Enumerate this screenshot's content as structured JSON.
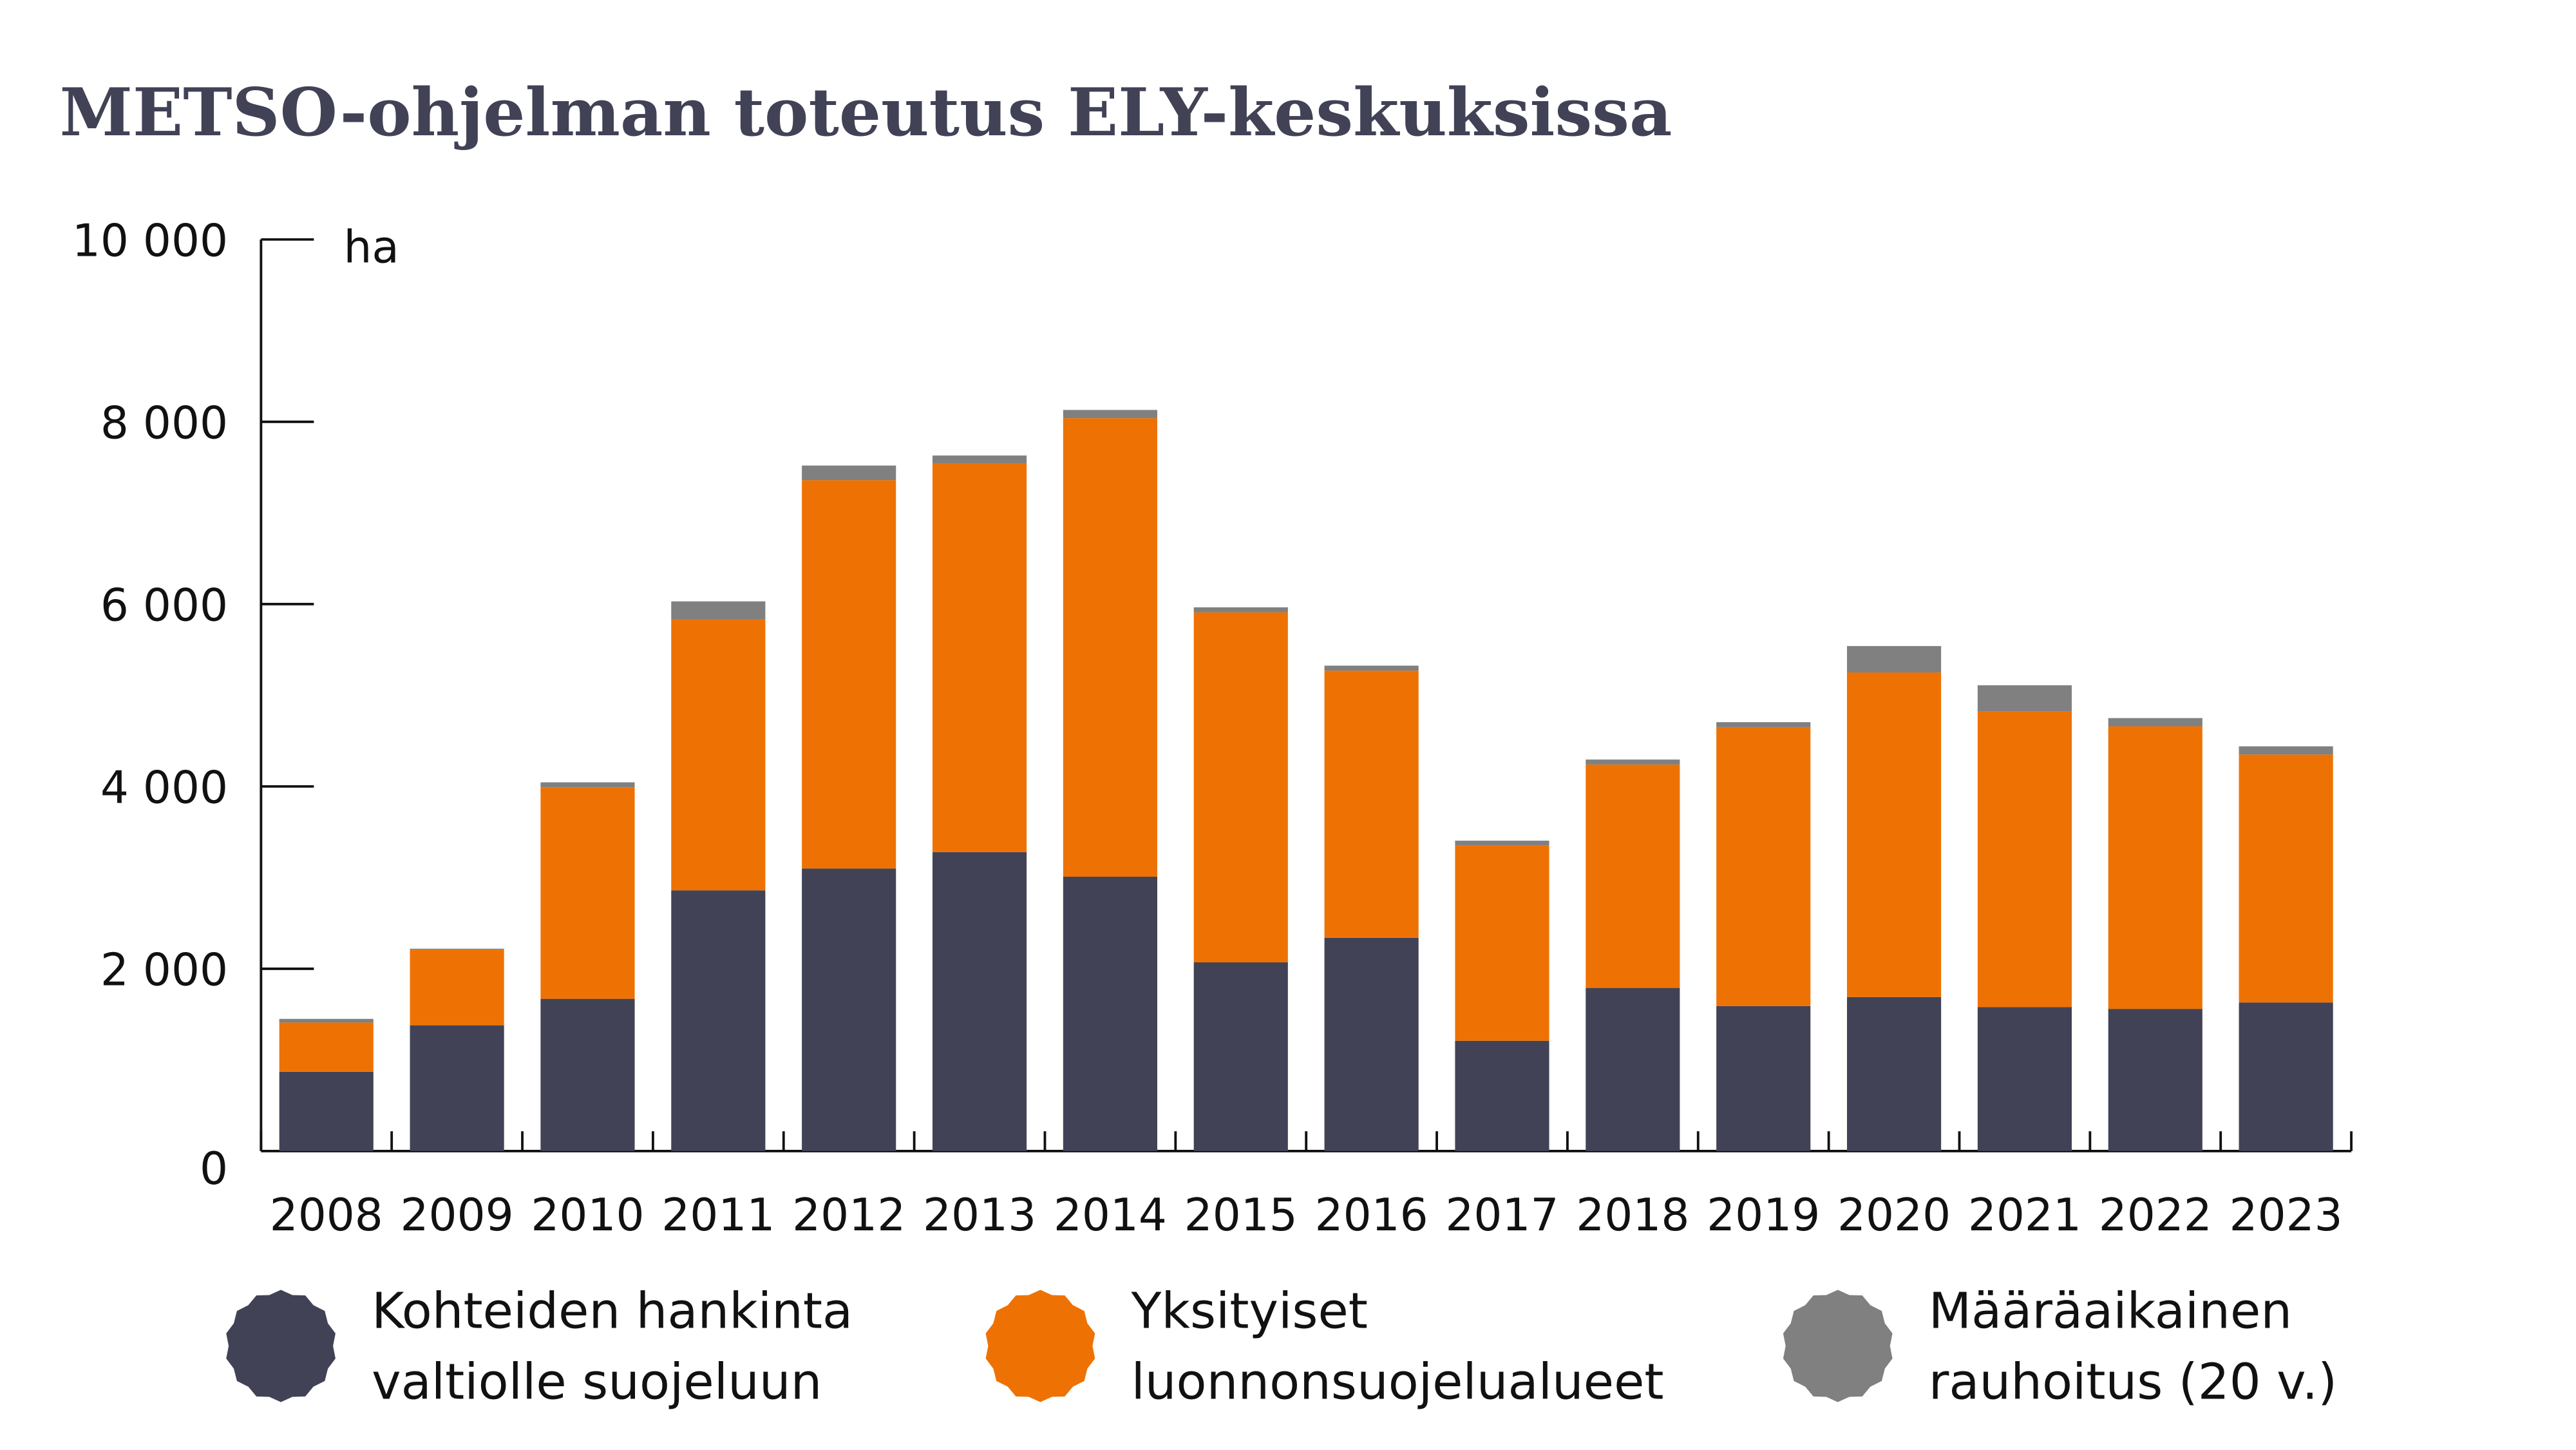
{
  "chart_data": {
    "type": "bar",
    "stacked": true,
    "title": "METSO-ohjelman toteutus ELY-keskuksissa",
    "ylabel": "ha",
    "xlabel": "",
    "ylim": [
      0,
      10000
    ],
    "yticks": [
      "0",
      "2 000",
      "4 000",
      "6 000",
      "8 000",
      "10 000"
    ],
    "ytick_values": [
      0,
      2000,
      4000,
      6000,
      8000,
      10000
    ],
    "grid": false,
    "legend_position": "bottom",
    "categories": [
      "2008",
      "2009",
      "2010",
      "2011",
      "2012",
      "2013",
      "2014",
      "2015",
      "2016",
      "2017",
      "2018",
      "2019",
      "2020",
      "2021",
      "2022",
      "2023"
    ],
    "series": [
      {
        "name": "Kohteiden hankinta valtiolle suojeluun",
        "legend_lines": [
          "Kohteiden hankinta",
          "valtiolle suojeluun"
        ],
        "color": "#414256",
        "values": [
          870,
          1380,
          1670,
          2860,
          3100,
          3280,
          3010,
          2070,
          2340,
          1210,
          1790,
          1590,
          1690,
          1580,
          1560,
          1630
        ]
      },
      {
        "name": "Yksityiset luonnonsuojelualueet",
        "legend_lines": [
          "Yksityiset",
          "luonnonsuojelualueet"
        ],
        "color": "#EE7203",
        "values": [
          540,
          830,
          2320,
          2970,
          4260,
          4260,
          5030,
          3840,
          2930,
          2140,
          2450,
          3060,
          3560,
          3240,
          3100,
          2720
        ]
      },
      {
        "name": "Määräaikainen rauhoitus (20 v.)",
        "legend_lines": [
          "Määräaikainen",
          "rauhoitus (20 v.)"
        ],
        "color": "#808080",
        "values": [
          40,
          10,
          55,
          200,
          160,
          90,
          90,
          55,
          55,
          55,
          55,
          55,
          290,
          290,
          90,
          90
        ]
      }
    ]
  }
}
